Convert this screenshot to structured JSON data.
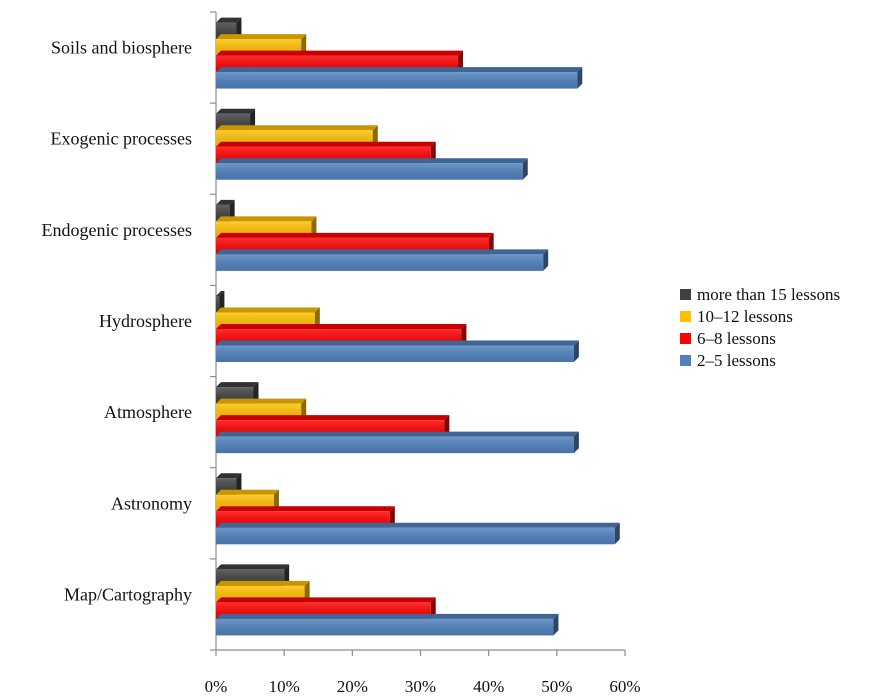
{
  "chart_data": {
    "type": "bar",
    "orientation": "horizontal",
    "style": "3d",
    "categories": [
      "Soils and biosphere",
      "Exogenic processes",
      "Endogenic processes",
      "Hydrosphere",
      "Atmosphere",
      "Astronomy",
      "Map/Cartography"
    ],
    "series": [
      {
        "name": "more than 15 lessons",
        "color": "#404040",
        "values": [
          3,
          5,
          2,
          0.5,
          5.5,
          3,
          10
        ]
      },
      {
        "name": "10–12 lessons",
        "color": "#FFC000",
        "values": [
          12.5,
          23,
          14,
          14.5,
          12.5,
          8.5,
          13
        ]
      },
      {
        "name": "6–8 lessons",
        "color": "#FF0000",
        "values": [
          35.5,
          31.5,
          40,
          36,
          33.5,
          25.5,
          31.5
        ]
      },
      {
        "name": "2–5 lessons",
        "color": "#4F81BD",
        "values": [
          53,
          45,
          48,
          52.5,
          52.5,
          58.5,
          49.5
        ]
      }
    ],
    "x_ticks": [
      "0%",
      "10%",
      "20%",
      "30%",
      "40%",
      "50%",
      "60%"
    ],
    "xlim": [
      0,
      60
    ],
    "legend": {
      "placement": "right",
      "order": [
        "more than 15 lessons",
        "10–12 lessons",
        "6–8 lessons",
        "2–5 lessons"
      ]
    },
    "grid": false
  }
}
